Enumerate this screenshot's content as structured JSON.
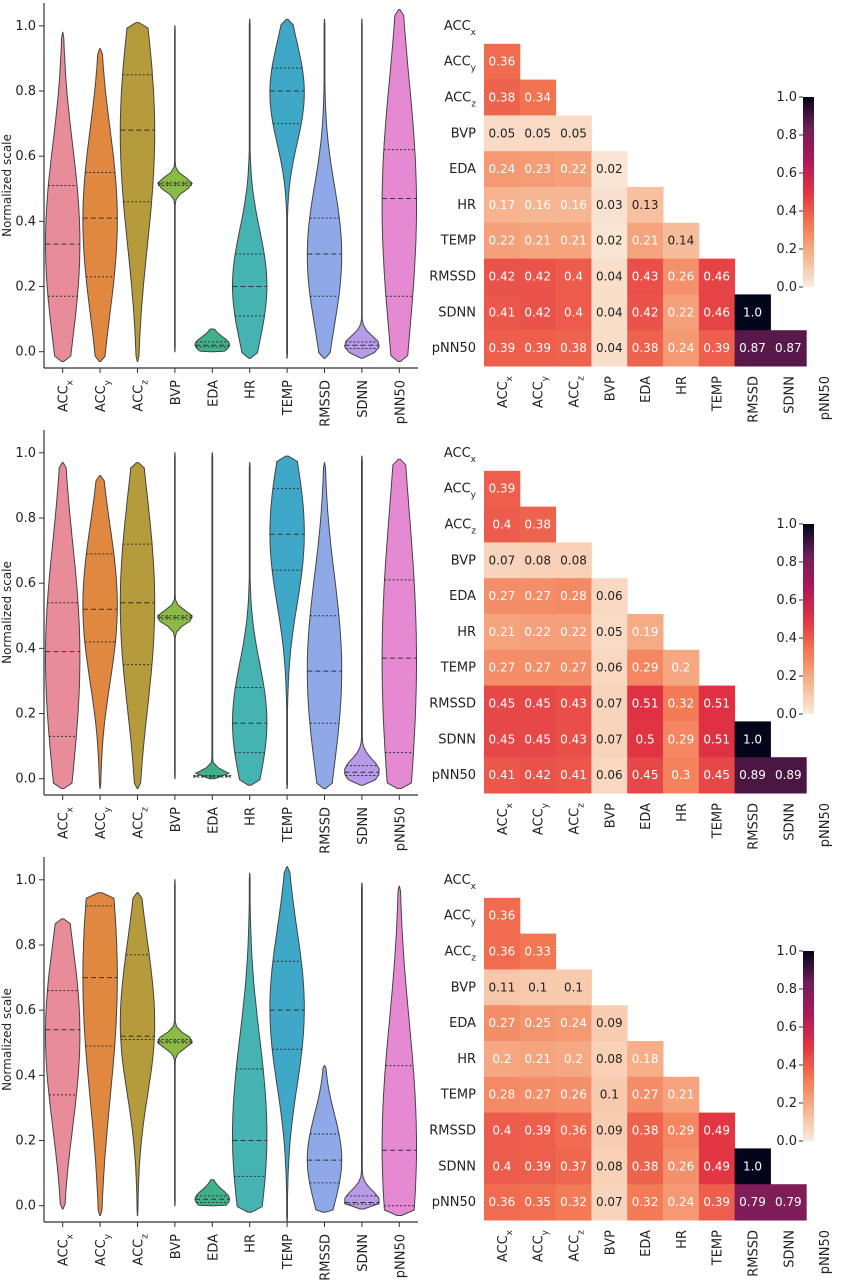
{
  "variables": [
    "ACCx",
    "ACCy",
    "ACCz",
    "BVP",
    "EDA",
    "HR",
    "TEMP",
    "RMSSD",
    "SDNN",
    "pNN50"
  ],
  "var_labels": [
    {
      "base": "ACC",
      "sub": "x"
    },
    {
      "base": "ACC",
      "sub": "y"
    },
    {
      "base": "ACC",
      "sub": "z"
    },
    {
      "base": "BVP",
      "sub": ""
    },
    {
      "base": "EDA",
      "sub": ""
    },
    {
      "base": "HR",
      "sub": ""
    },
    {
      "base": "TEMP",
      "sub": ""
    },
    {
      "base": "RMSSD",
      "sub": ""
    },
    {
      "base": "SDNN",
      "sub": ""
    },
    {
      "base": "pNN50",
      "sub": ""
    }
  ],
  "violin_colors": [
    "#e88c9a",
    "#e0883f",
    "#b59b3b",
    "#8bbb45",
    "#3fb08a",
    "#46b3b3",
    "#3fa8c8",
    "#8ea8e8",
    "#b79ae8",
    "#e58ad2"
  ],
  "colormap": [
    "#faebdd",
    "#f6b48e",
    "#f37651",
    "#e13342",
    "#ad1759",
    "#701f57",
    "#03051a"
  ],
  "chart_data": [
    {
      "panel": 1,
      "violin": {
        "type": "violin",
        "ylabel": "Normalized scale",
        "ylim": [
          -0.05,
          1.0
        ],
        "yticks": [
          "0.0",
          "0.2",
          "0.4",
          "0.6",
          "0.8",
          "1.0"
        ],
        "quartiles": [
          [
            0.17,
            0.33,
            0.51
          ],
          [
            0.23,
            0.41,
            0.55
          ],
          [
            0.46,
            0.68,
            0.85
          ],
          [
            0.51,
            0.515,
            0.52
          ],
          [
            0.015,
            0.02,
            0.03
          ],
          [
            0.11,
            0.2,
            0.3
          ],
          [
            0.7,
            0.8,
            0.87
          ],
          [
            0.17,
            0.3,
            0.41
          ],
          [
            0.01,
            0.02,
            0.03
          ],
          [
            0.17,
            0.47,
            0.62
          ]
        ],
        "ranges": [
          [
            -0.03,
            0.98
          ],
          [
            -0.03,
            0.93
          ],
          [
            -0.03,
            1.01
          ],
          [
            0.0,
            1.0
          ],
          [
            0.0,
            0.07
          ],
          [
            -0.02,
            1.02
          ],
          [
            -0.02,
            1.02
          ],
          [
            -0.02,
            1.02
          ],
          [
            -0.02,
            1.02
          ],
          [
            -0.03,
            1.05
          ]
        ]
      },
      "heatmap": {
        "type": "heatmap",
        "colorbar_ticks": [
          "0.0",
          "0.2",
          "0.4",
          "0.6",
          "0.8",
          "1.0"
        ],
        "rows": [
          [],
          [
            "0.36"
          ],
          [
            "0.38",
            "0.34"
          ],
          [
            "0.05",
            "0.05",
            "0.05"
          ],
          [
            "0.24",
            "0.23",
            "0.22",
            "0.02"
          ],
          [
            "0.17",
            "0.16",
            "0.16",
            "0.03",
            "0.13"
          ],
          [
            "0.22",
            "0.21",
            "0.21",
            "0.02",
            "0.21",
            "0.14"
          ],
          [
            "0.42",
            "0.42",
            "0.4",
            "0.04",
            "0.43",
            "0.26",
            "0.46"
          ],
          [
            "0.41",
            "0.42",
            "0.4",
            "0.04",
            "0.42",
            "0.22",
            "0.46",
            "1.0"
          ],
          [
            "0.39",
            "0.39",
            "0.38",
            "0.04",
            "0.38",
            "0.24",
            "0.39",
            "0.87",
            "0.87"
          ]
        ]
      }
    },
    {
      "panel": 2,
      "violin": {
        "type": "violin",
        "ylabel": "Normalized scale",
        "ylim": [
          -0.05,
          1.0
        ],
        "yticks": [
          "0.0",
          "0.2",
          "0.4",
          "0.6",
          "0.8",
          "1.0"
        ],
        "quartiles": [
          [
            0.13,
            0.39,
            0.54
          ],
          [
            0.42,
            0.52,
            0.69
          ],
          [
            0.35,
            0.54,
            0.72
          ],
          [
            0.49,
            0.495,
            0.5
          ],
          [
            0.005,
            0.008,
            0.01
          ],
          [
            0.08,
            0.17,
            0.28
          ],
          [
            0.64,
            0.75,
            0.89
          ],
          [
            0.17,
            0.33,
            0.5
          ],
          [
            0.01,
            0.02,
            0.04
          ],
          [
            0.08,
            0.37,
            0.61
          ]
        ],
        "ranges": [
          [
            -0.03,
            0.97
          ],
          [
            -0.03,
            0.93
          ],
          [
            -0.03,
            0.97
          ],
          [
            0.0,
            1.0
          ],
          [
            0.0,
            1.0
          ],
          [
            -0.02,
            0.97
          ],
          [
            -0.03,
            0.99
          ],
          [
            -0.03,
            0.97
          ],
          [
            -0.02,
            0.99
          ],
          [
            -0.03,
            0.98
          ]
        ]
      },
      "heatmap": {
        "type": "heatmap",
        "colorbar_ticks": [
          "0.0",
          "0.2",
          "0.4",
          "0.6",
          "0.8",
          "1.0"
        ],
        "rows": [
          [],
          [
            "0.39"
          ],
          [
            "0.4",
            "0.38"
          ],
          [
            "0.07",
            "0.08",
            "0.08"
          ],
          [
            "0.27",
            "0.27",
            "0.28",
            "0.06"
          ],
          [
            "0.21",
            "0.22",
            "0.22",
            "0.05",
            "0.19"
          ],
          [
            "0.27",
            "0.27",
            "0.27",
            "0.06",
            "0.29",
            "0.2"
          ],
          [
            "0.45",
            "0.45",
            "0.43",
            "0.07",
            "0.51",
            "0.32",
            "0.51"
          ],
          [
            "0.45",
            "0.45",
            "0.43",
            "0.07",
            "0.5",
            "0.29",
            "0.51",
            "1.0"
          ],
          [
            "0.41",
            "0.42",
            "0.41",
            "0.06",
            "0.45",
            "0.3",
            "0.45",
            "0.89",
            "0.89"
          ]
        ]
      }
    },
    {
      "panel": 3,
      "violin": {
        "type": "violin",
        "ylabel": "Normalized scale",
        "ylim": [
          -0.05,
          1.0
        ],
        "yticks": [
          "0.0",
          "0.2",
          "0.4",
          "0.6",
          "0.8",
          "1.0"
        ],
        "quartiles": [
          [
            0.34,
            0.54,
            0.66
          ],
          [
            0.49,
            0.7,
            0.92
          ],
          [
            0.51,
            0.52,
            0.77
          ],
          [
            0.5,
            0.505,
            0.51
          ],
          [
            0.01,
            0.02,
            0.03
          ],
          [
            0.09,
            0.2,
            0.42
          ],
          [
            0.48,
            0.6,
            0.75
          ],
          [
            0.07,
            0.14,
            0.22
          ],
          [
            0.005,
            0.01,
            0.03
          ],
          [
            0.0,
            0.17,
            0.43
          ]
        ],
        "ranges": [
          [
            -0.01,
            0.88
          ],
          [
            -0.03,
            0.96
          ],
          [
            -0.03,
            0.96
          ],
          [
            0.0,
            1.0
          ],
          [
            0.0,
            0.08
          ],
          [
            -0.02,
            1.02
          ],
          [
            -0.05,
            1.04
          ],
          [
            -0.02,
            0.43
          ],
          [
            -0.01,
            0.99
          ],
          [
            -0.03,
            0.98
          ]
        ]
      },
      "heatmap": {
        "type": "heatmap",
        "colorbar_ticks": [
          "0.0",
          "0.2",
          "0.4",
          "0.6",
          "0.8",
          "1.0"
        ],
        "rows": [
          [],
          [
            "0.36"
          ],
          [
            "0.36",
            "0.33"
          ],
          [
            "0.11",
            "0.1",
            "0.1"
          ],
          [
            "0.27",
            "0.25",
            "0.24",
            "0.09"
          ],
          [
            "0.2",
            "0.21",
            "0.2",
            "0.08",
            "0.18"
          ],
          [
            "0.28",
            "0.27",
            "0.26",
            "0.1",
            "0.27",
            "0.21"
          ],
          [
            "0.4",
            "0.39",
            "0.36",
            "0.09",
            "0.38",
            "0.29",
            "0.49"
          ],
          [
            "0.4",
            "0.39",
            "0.37",
            "0.08",
            "0.38",
            "0.26",
            "0.49",
            "1.0"
          ],
          [
            "0.36",
            "0.35",
            "0.32",
            "0.07",
            "0.32",
            "0.24",
            "0.39",
            "0.79",
            "0.79"
          ]
        ]
      }
    }
  ]
}
